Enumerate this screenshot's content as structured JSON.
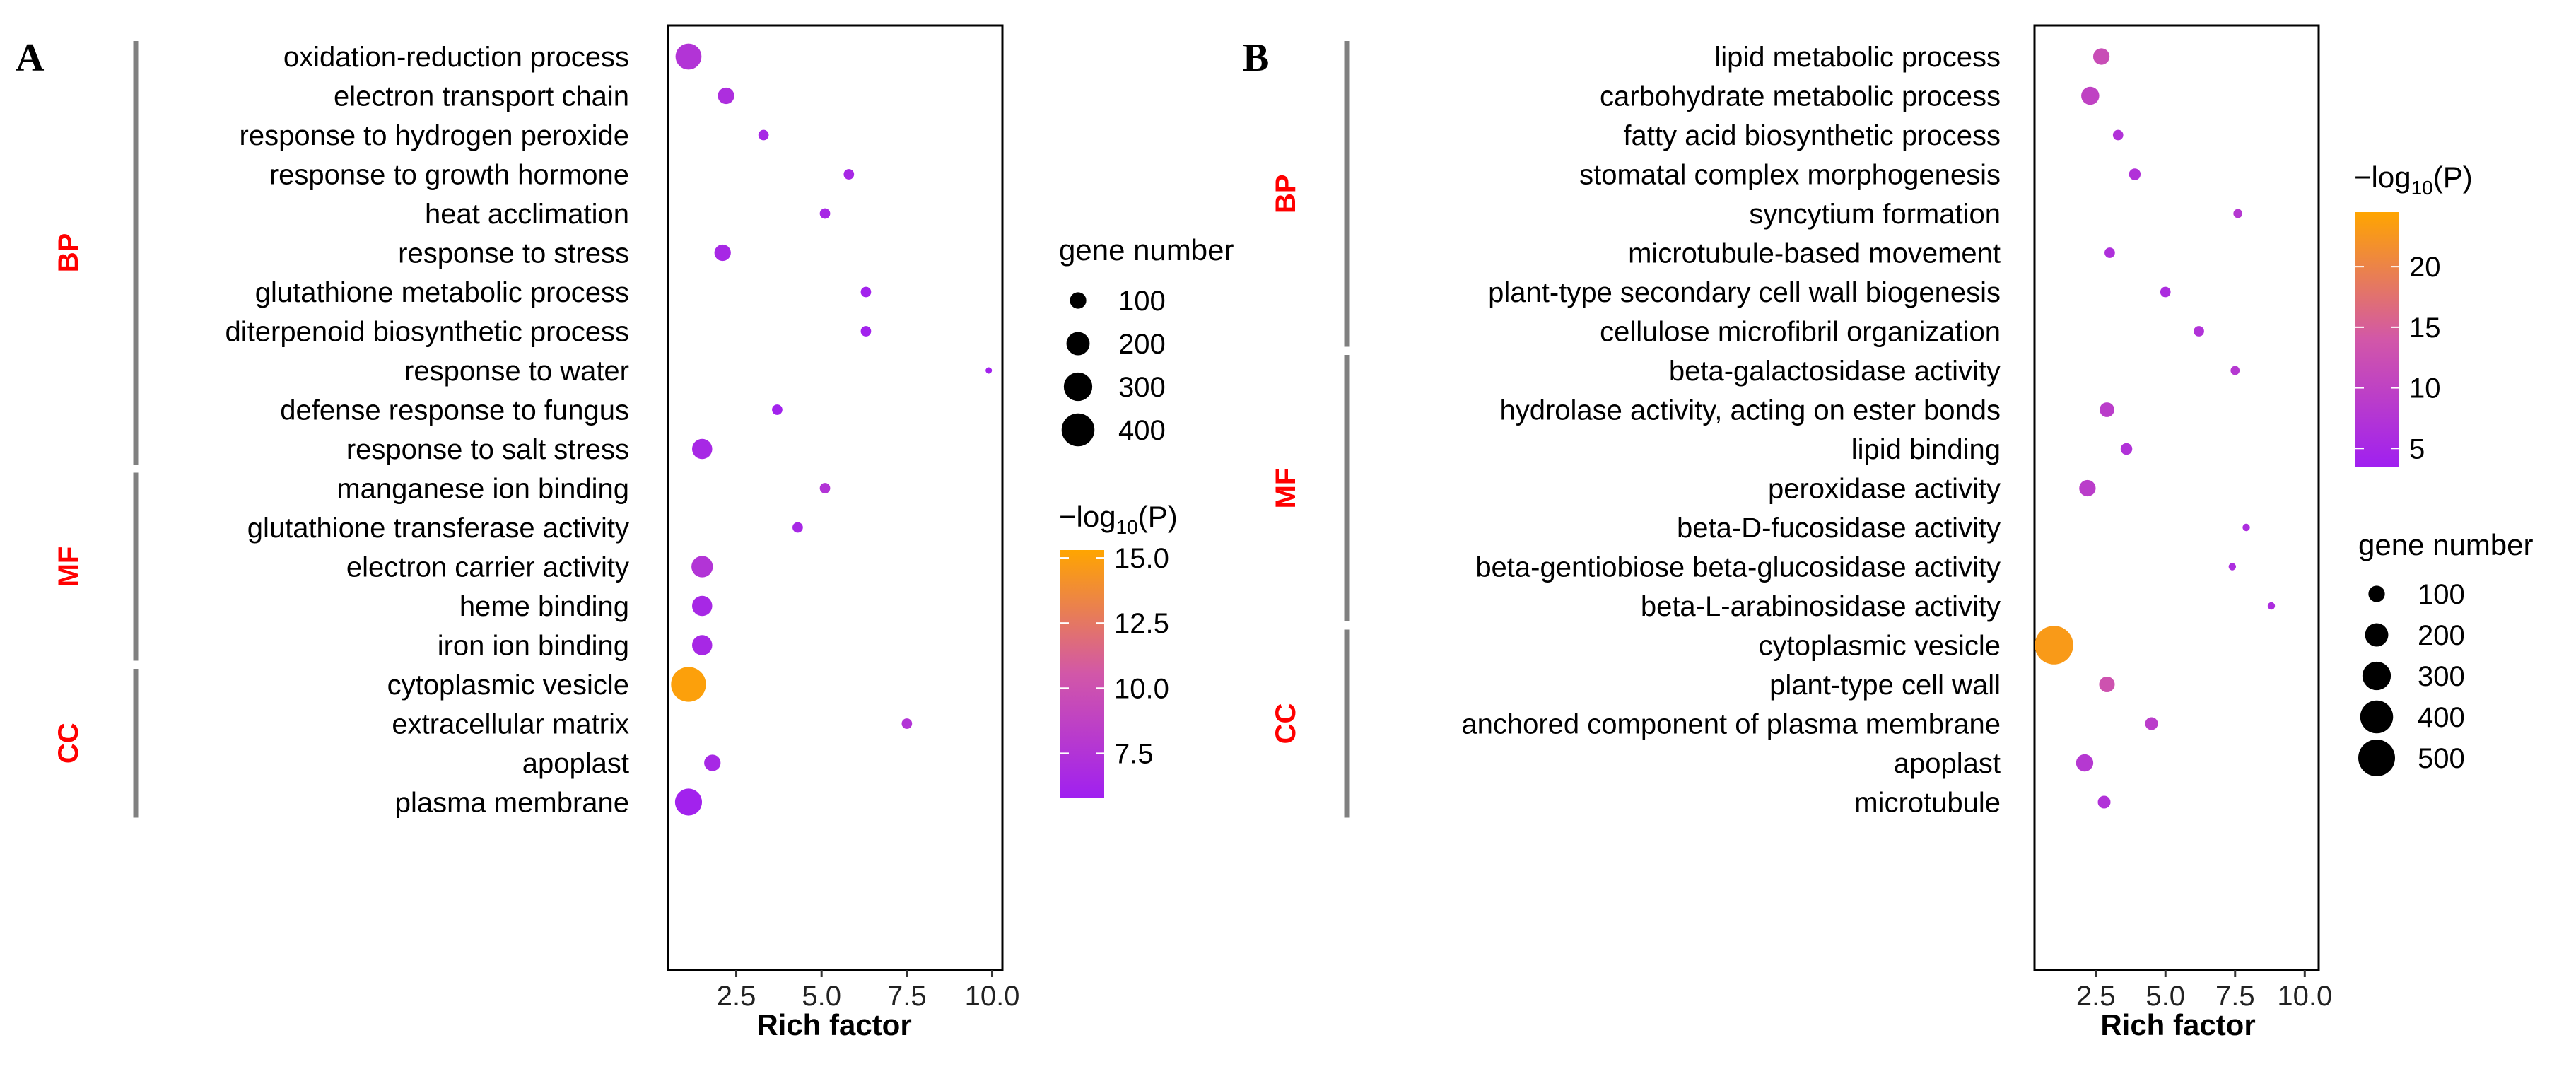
{
  "colors": {
    "low": "#a020f0",
    "high": "#ffa500",
    "bracket": "#808080",
    "group_text": "#ff0000"
  },
  "chart_data": [
    {
      "type": "scatter",
      "panel_label": "A",
      "xlabel": "Rich factor",
      "ylabel": "",
      "xlim": [
        0.5,
        10.3
      ],
      "xticks": [
        2.5,
        5.0,
        7.5,
        10.0
      ],
      "xtick_labels": [
        "2.5",
        "5.0",
        "7.5",
        "10.0"
      ],
      "categories": [
        "oxidation-reduction process",
        "electron transport chain",
        "response to hydrogen peroxide",
        "response to growth hormone",
        "heat acclimation",
        "response to stress",
        "glutathione metabolic process",
        "diterpenoid biosynthetic process",
        "response to water",
        "defense response to fungus",
        "response to salt stress",
        "manganese ion binding",
        "glutathione transferase activity",
        "electron carrier activity",
        "heme binding",
        "iron ion binding",
        "cytoplasmic vesicle",
        "extracellular matrix",
        "apoplast",
        "plasma membrane"
      ],
      "rich_factor": [
        1.1,
        2.2,
        3.3,
        5.8,
        5.1,
        2.1,
        6.3,
        6.3,
        9.9,
        3.7,
        1.5,
        5.1,
        4.3,
        1.5,
        1.5,
        1.5,
        1.1,
        7.5,
        1.8,
        1.1
      ],
      "gene_number": [
        250,
        100,
        40,
        40,
        40,
        100,
        40,
        40,
        15,
        40,
        150,
        40,
        40,
        170,
        150,
        150,
        450,
        40,
        100,
        270
      ],
      "neg_log10_p": [
        7.5,
        7.0,
        6.5,
        6.5,
        6.5,
        6.5,
        6.0,
        6.0,
        6.0,
        6.0,
        6.5,
        7.5,
        6.5,
        7.5,
        6.5,
        6.5,
        15.0,
        7.5,
        6.5,
        6.0
      ],
      "groups": [
        {
          "name": "BP",
          "start": 0,
          "end": 10
        },
        {
          "name": "MF",
          "start": 11,
          "end": 15
        },
        {
          "name": "CC",
          "start": 16,
          "end": 19
        }
      ],
      "legend_size": {
        "title": "gene number",
        "values": [
          100,
          200,
          300,
          400
        ],
        "labels": [
          "100",
          "200",
          "300",
          "400"
        ]
      },
      "legend_color": {
        "title_prefix": "−log",
        "title_sub": "10",
        "title_suffix": "(P)",
        "range": [
          5.8,
          15.3
        ],
        "ticks": [
          7.5,
          10.0,
          12.5,
          15.0
        ],
        "tick_labels": [
          "7.5",
          "10.0",
          "12.5",
          "15.0"
        ]
      }
    },
    {
      "type": "scatter",
      "panel_label": "B",
      "xlabel": "Rich factor",
      "ylabel": "",
      "xlim": [
        0.3,
        10.5
      ],
      "xticks": [
        2.5,
        5.0,
        7.5,
        10.0
      ],
      "xtick_labels": [
        "2.5",
        "5.0",
        "7.5",
        "10.0"
      ],
      "categories": [
        "lipid metabolic process",
        "carbohydrate metabolic process",
        "fatty acid biosynthetic process",
        "stomatal complex morphogenesis",
        "syncytium formation",
        "microtubule-based movement",
        "plant-type secondary cell wall biogenesis",
        "cellulose microfibril organization",
        "beta-galactosidase activity",
        "hydrolase activity, acting on ester bonds",
        "lipid binding",
        "peroxidase activity",
        "beta-D-fucosidase activity",
        "beta-gentiobiose beta-glucosidase activity",
        "beta-L-arabinosidase activity",
        "cytoplasmic vesicle",
        "plant-type cell wall",
        "anchored component of plasma membrane",
        "apoplast",
        "microtubule"
      ],
      "rich_factor": [
        2.7,
        2.3,
        3.3,
        3.9,
        7.6,
        3.0,
        5.0,
        6.2,
        7.5,
        2.9,
        3.6,
        2.2,
        7.9,
        7.4,
        8.8,
        1.0,
        2.9,
        4.5,
        2.1,
        2.8
      ],
      "gene_number": [
        100,
        120,
        40,
        50,
        30,
        40,
        40,
        40,
        30,
        80,
        50,
        100,
        20,
        20,
        20,
        550,
        90,
        60,
        110,
        60
      ],
      "neg_log10_p": [
        12.0,
        10.0,
        7.0,
        7.0,
        8.0,
        6.5,
        6.0,
        7.0,
        8.0,
        9.0,
        7.0,
        9.0,
        6.0,
        6.0,
        6.0,
        23.0,
        13.0,
        9.0,
        8.0,
        7.0
      ],
      "groups": [
        {
          "name": "BP",
          "start": 0,
          "end": 7
        },
        {
          "name": "MF",
          "start": 8,
          "end": 14
        },
        {
          "name": "CC",
          "start": 15,
          "end": 19
        }
      ],
      "legend_size": {
        "title": "gene number",
        "values": [
          100,
          200,
          300,
          400,
          500
        ],
        "labels": [
          "100",
          "200",
          "300",
          "400",
          "500"
        ]
      },
      "legend_color": {
        "title_prefix": "−log",
        "title_sub": "10",
        "title_suffix": "(P)",
        "range": [
          3.5,
          24.5
        ],
        "ticks": [
          5,
          10,
          15,
          20
        ],
        "tick_labels": [
          "5",
          "10",
          "15",
          "20"
        ]
      }
    }
  ]
}
